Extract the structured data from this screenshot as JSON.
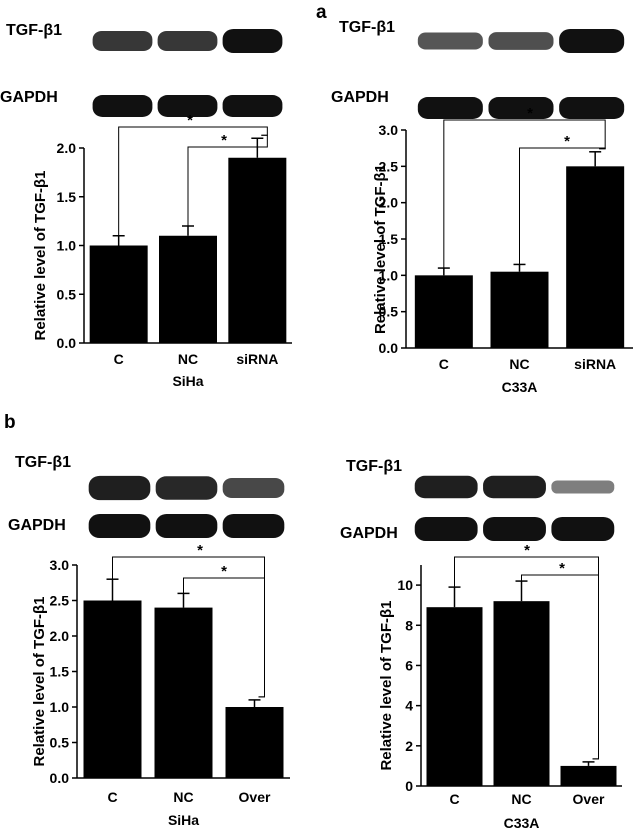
{
  "figure": {
    "panel_labels": [
      "a",
      "b"
    ],
    "blot_labels": {
      "target": "TGF-β1",
      "control": "GAPDH"
    }
  },
  "chart_data": [
    {
      "type": "bar",
      "panel": "a",
      "cell_line": "SiHa",
      "categories": [
        "C",
        "NC",
        "siRNA"
      ],
      "values": [
        1.0,
        1.1,
        1.9
      ],
      "errors": [
        0.1,
        0.1,
        0.2
      ],
      "xlabel": "SiHa",
      "ylabel": "Relative level of TGF-β1",
      "ylim": [
        0,
        2.0
      ],
      "yticks": [
        "0.0",
        "0.5",
        "1.0",
        "1.5",
        "2.0"
      ],
      "significance": [
        {
          "from": "C",
          "to": "siRNA",
          "label": "*"
        },
        {
          "from": "NC",
          "to": "siRNA",
          "label": "*"
        }
      ],
      "blot_band_intensity": {
        "target": [
          0.75,
          0.75,
          1.0
        ],
        "control": [
          1.0,
          1.0,
          1.0
        ]
      }
    },
    {
      "type": "bar",
      "panel": "a",
      "cell_line": "C33A",
      "categories": [
        "C",
        "NC",
        "siRNA"
      ],
      "values": [
        1.0,
        1.05,
        2.5
      ],
      "errors": [
        0.1,
        0.1,
        0.2
      ],
      "xlabel": "C33A",
      "ylabel": "Relative level of TGF-β1",
      "ylim": [
        0,
        3.0
      ],
      "yticks": [
        "0.0",
        "0.5",
        "1.0",
        "1.5",
        "2.0",
        "2.5",
        "3.0"
      ],
      "significance": [
        {
          "from": "C",
          "to": "siRNA",
          "label": "*"
        },
        {
          "from": "NC",
          "to": "siRNA",
          "label": "*"
        }
      ],
      "blot_band_intensity": {
        "target": [
          0.55,
          0.6,
          1.0
        ],
        "control": [
          1.0,
          1.0,
          1.0
        ]
      }
    },
    {
      "type": "bar",
      "panel": "b",
      "cell_line": "SiHa",
      "categories": [
        "C",
        "NC",
        "Over"
      ],
      "values": [
        2.5,
        2.4,
        1.0
      ],
      "errors": [
        0.3,
        0.2,
        0.1
      ],
      "xlabel": "SiHa",
      "ylabel": "Relative level of TGF-β1",
      "ylim": [
        0,
        3.0
      ],
      "yticks": [
        "0.0",
        "0.5",
        "1.0",
        "1.5",
        "2.0",
        "2.5",
        "3.0"
      ],
      "significance": [
        {
          "from": "C",
          "to": "Over",
          "label": "*"
        },
        {
          "from": "NC",
          "to": "Over",
          "label": "*"
        }
      ],
      "blot_band_intensity": {
        "target": [
          0.9,
          0.85,
          0.65
        ],
        "control": [
          1.0,
          1.0,
          1.0
        ]
      }
    },
    {
      "type": "bar",
      "panel": "b",
      "cell_line": "C33A",
      "categories": [
        "C",
        "NC",
        "Over"
      ],
      "values": [
        8.9,
        9.2,
        1.0
      ],
      "errors": [
        1.0,
        1.0,
        0.2
      ],
      "xlabel": "C33A",
      "ylabel": "Relative level of TGF-β1",
      "ylim": [
        0,
        11
      ],
      "yticks": [
        "0",
        "2",
        "4",
        "6",
        "8",
        "10"
      ],
      "significance": [
        {
          "from": "C",
          "to": "Over",
          "label": "*"
        },
        {
          "from": "NC",
          "to": "Over",
          "label": "*"
        }
      ],
      "blot_band_intensity": {
        "target": [
          0.9,
          0.9,
          0.3
        ],
        "control": [
          1.0,
          1.0,
          1.0
        ]
      }
    }
  ]
}
